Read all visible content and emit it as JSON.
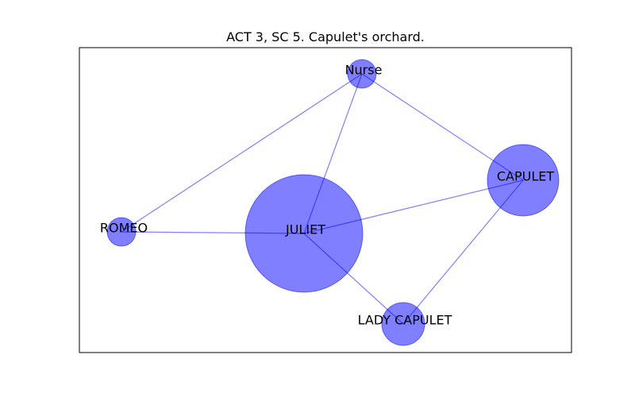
{
  "title": "ACT 3, SC 5. Capulet's orchard.",
  "colors": {
    "node": "#0000ff",
    "edge": "#0000ff"
  },
  "nodes": [
    {
      "id": "nurse",
      "label": "Nurse",
      "size": 1
    },
    {
      "id": "capulet",
      "label": "CAPULET",
      "size": 5
    },
    {
      "id": "romeo",
      "label": "ROMEO",
      "size": 1
    },
    {
      "id": "juliet",
      "label": "JULIET",
      "size": 14
    },
    {
      "id": "lady_capulet",
      "label": "LADY CAPULET",
      "size": 2
    }
  ],
  "edges": [
    [
      "nurse",
      "romeo"
    ],
    [
      "nurse",
      "juliet"
    ],
    [
      "nurse",
      "capulet"
    ],
    [
      "romeo",
      "juliet"
    ],
    [
      "juliet",
      "capulet"
    ],
    [
      "juliet",
      "lady_capulet"
    ],
    [
      "capulet",
      "lady_capulet"
    ]
  ]
}
